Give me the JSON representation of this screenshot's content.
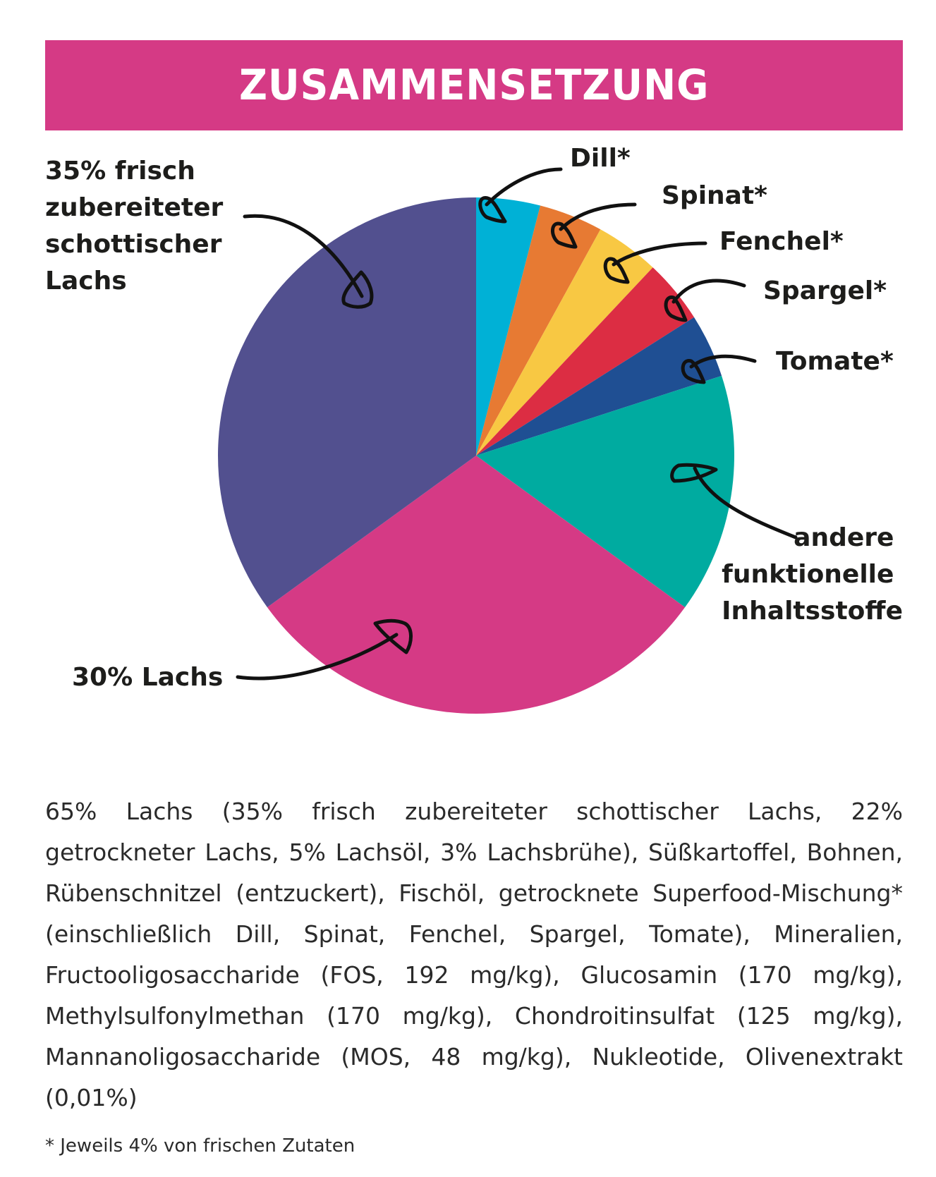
{
  "banner": {
    "title": "ZUSAMMENSETZUNG",
    "color": "#d53a85"
  },
  "chart_data": {
    "type": "pie",
    "title": "ZUSAMMENSETZUNG",
    "start_angle_deg": 0,
    "direction": "clockwise",
    "slices": [
      {
        "label": "Dill*",
        "value": 4,
        "color": "#00b1d6"
      },
      {
        "label": "Spinat*",
        "value": 4,
        "color": "#e77a33"
      },
      {
        "label": "Fenchel*",
        "value": 4,
        "color": "#f8c843"
      },
      {
        "label": "Spargel*",
        "value": 4,
        "color": "#dc2d43"
      },
      {
        "label": "Tomate*",
        "value": 4,
        "color": "#1f4f93"
      },
      {
        "label": "andere funktionelle Inhaltsstoffe",
        "value": 15,
        "color": "#00aba0"
      },
      {
        "label": "30% Lachs",
        "value": 30,
        "color": "#d53a85"
      },
      {
        "label": "35% frisch zubereiteter schottischer Lachs",
        "value": 35,
        "color": "#52508f"
      }
    ],
    "label_lines": {
      "Dill*": [
        "Dill*"
      ],
      "Spinat*": [
        "Spinat*"
      ],
      "Fenchel*": [
        "Fenchel*"
      ],
      "Spargel*": [
        "Spargel*"
      ],
      "Tomate*": [
        "Tomate*"
      ],
      "andere": [
        "andere",
        "funktionelle",
        "Inhaltsstoffe"
      ],
      "lachs30": [
        "30% Lachs"
      ],
      "lachs35": [
        "35% frisch",
        "zubereiteter",
        "schottischer",
        "Lachs"
      ]
    }
  },
  "description": "65% Lachs (35% frisch zubereiteter schottischer Lachs, 22% getrockneter Lachs, 5% Lachsöl, 3% Lachsbrühe), Süßkartoffel, Bohnen, Rübenschnitzel (entzuckert), Fischöl, getrocknete Superfood-Mischung* (einschließlich Dill, Spinat, Fenchel, Spargel, Tomate), Mineralien, Fructooligosaccharide (FOS, 192 mg/kg), Glucosamin (170 mg/kg), Methylsulfonylmethan (170 mg/kg), Chondroitinsulfat (125 mg/kg), Mannanoligosaccharide (MOS, 48 mg/kg), Nukleotide, Olivenextrakt (0,01%)",
  "footnote": "* Jeweils 4% von frischen Zutaten"
}
